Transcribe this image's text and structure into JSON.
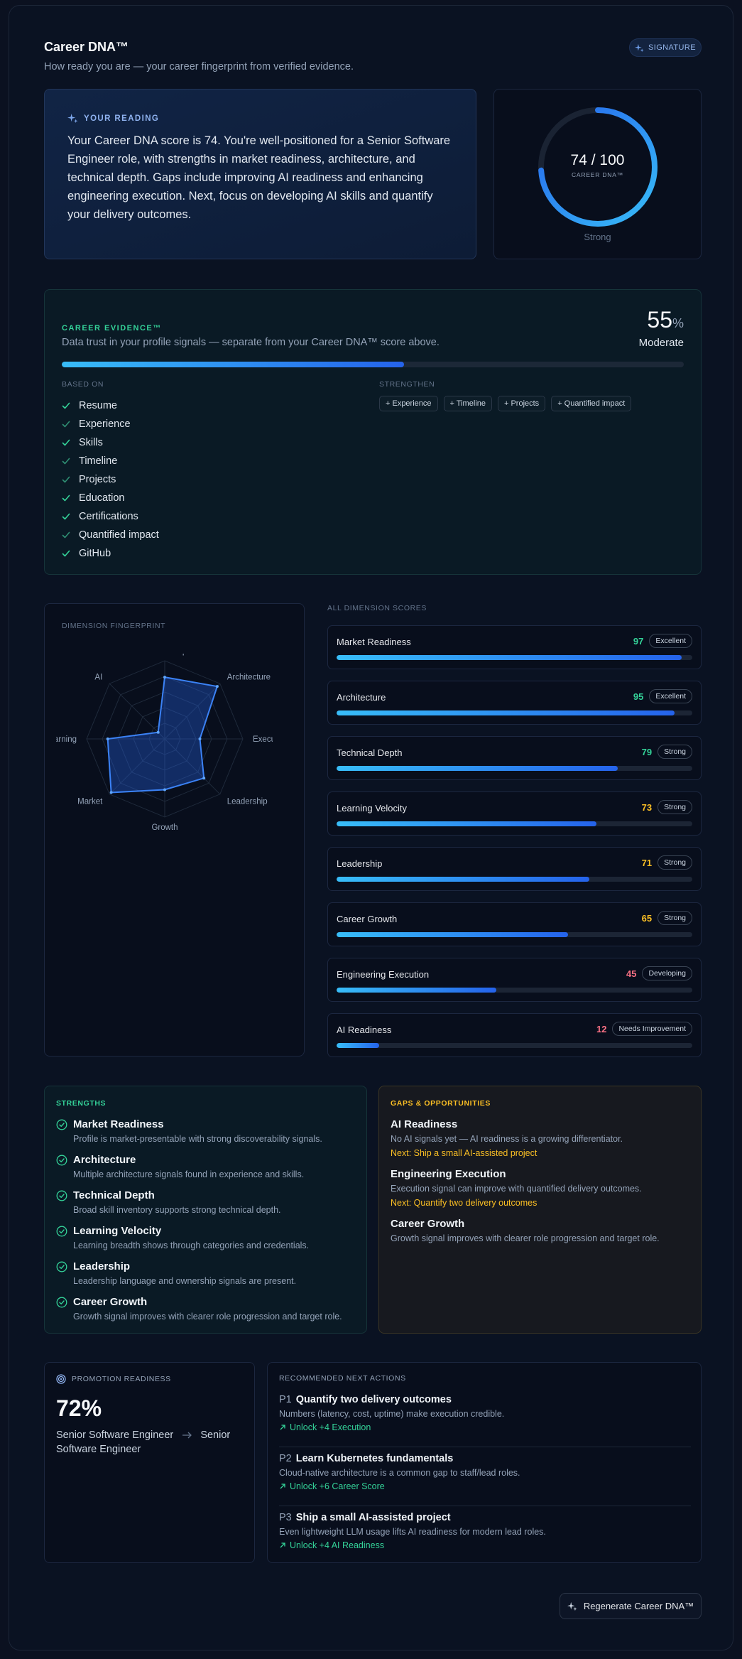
{
  "header": {
    "title": "Career DNA™",
    "subtitle": "How ready you are — your career fingerprint from verified evidence.",
    "badge": "SIGNATURE"
  },
  "reading": {
    "label": "YOUR READING",
    "text": "Your Career DNA score is 74. You're well-positioned for a Senior Software Engineer role, with strengths in market readiness, architecture, and technical depth. Gaps include improving AI readiness and enhancing engineering execution. Next, focus on developing AI skills and quantify your delivery outcomes."
  },
  "score": {
    "value": 74,
    "max": 100,
    "display": "74 / 100",
    "label": "CAREER DNA™",
    "level": "Strong"
  },
  "evidence": {
    "label": "CAREER EVIDENCE™",
    "description": "Data trust in your profile signals — separate from your Career DNA™ score above.",
    "percent": "55",
    "percent_unit": "%",
    "percent_value": 55,
    "level": "Moderate",
    "based_on_label": "BASED ON",
    "based_on": [
      {
        "label": "Resume",
        "strong": true
      },
      {
        "label": "Experience",
        "strong": false
      },
      {
        "label": "Skills",
        "strong": true
      },
      {
        "label": "Timeline",
        "strong": false
      },
      {
        "label": "Projects",
        "strong": false
      },
      {
        "label": "Education",
        "strong": true
      },
      {
        "label": "Certifications",
        "strong": true
      },
      {
        "label": "Quantified impact",
        "strong": false
      },
      {
        "label": "GitHub",
        "strong": true
      }
    ],
    "strengthen_label": "STRENGTHEN",
    "strengthen": [
      "+ Experience",
      "+ Timeline",
      "+ Projects",
      "+ Quantified impact"
    ]
  },
  "fingerprint": {
    "label": "DIMENSION FINGERPRINT",
    "axes": [
      {
        "label": "Technical Depth",
        "value": 79
      },
      {
        "label": "Architecture",
        "value": 95
      },
      {
        "label": "Execution",
        "value": 45
      },
      {
        "label": "Leadership",
        "value": 71
      },
      {
        "label": "Growth",
        "value": 65
      },
      {
        "label": "Market",
        "value": 97
      },
      {
        "label": "Learning",
        "value": 73
      },
      {
        "label": "AI",
        "value": 12
      }
    ]
  },
  "dimensions": {
    "label": "ALL DIMENSION SCORES",
    "items": [
      {
        "name": "Market Readiness",
        "score": "97",
        "value": 97,
        "badge": "Excellent",
        "color": "#34d399"
      },
      {
        "name": "Architecture",
        "score": "95",
        "value": 95,
        "badge": "Excellent",
        "color": "#34d399"
      },
      {
        "name": "Technical Depth",
        "score": "79",
        "value": 79,
        "badge": "Strong",
        "color": "#34d399"
      },
      {
        "name": "Learning Velocity",
        "score": "73",
        "value": 73,
        "badge": "Strong",
        "color": "#fbbf24"
      },
      {
        "name": "Leadership",
        "score": "71",
        "value": 71,
        "badge": "Strong",
        "color": "#fbbf24"
      },
      {
        "name": "Career Growth",
        "score": "65",
        "value": 65,
        "badge": "Strong",
        "color": "#fbbf24"
      },
      {
        "name": "Engineering Execution",
        "score": "45",
        "value": 45,
        "badge": "Developing",
        "color": "#fb7185"
      },
      {
        "name": "AI Readiness",
        "score": "12",
        "value": 12,
        "badge": "Needs Improvement",
        "color": "#fb7185"
      }
    ]
  },
  "strengths": {
    "label": "STRENGTHS",
    "items": [
      {
        "title": "Market Readiness",
        "desc": "Profile is market-presentable with strong discoverability signals."
      },
      {
        "title": "Architecture",
        "desc": "Multiple architecture signals found in experience and skills."
      },
      {
        "title": "Technical Depth",
        "desc": "Broad skill inventory supports strong technical depth."
      },
      {
        "title": "Learning Velocity",
        "desc": "Learning breadth shows through categories and credentials."
      },
      {
        "title": "Leadership",
        "desc": "Leadership language and ownership signals are present."
      },
      {
        "title": "Career Growth",
        "desc": "Growth signal improves with clearer role progression and target role."
      }
    ]
  },
  "gaps": {
    "label": "GAPS & OPPORTUNITIES",
    "items": [
      {
        "title": "AI Readiness",
        "desc": "No AI signals yet — AI readiness is a growing differentiator.",
        "next": "Next: Ship a small AI-assisted project"
      },
      {
        "title": "Engineering Execution",
        "desc": "Execution signal can improve with quantified delivery outcomes.",
        "next": "Next: Quantify two delivery outcomes"
      },
      {
        "title": "Career Growth",
        "desc": "Growth signal improves with clearer role progression and target role.",
        "next": ""
      }
    ]
  },
  "promotion": {
    "label": "PROMOTION READINESS",
    "percent": "72%",
    "from": "Senior Software Engineer",
    "to": "Senior Software Engineer"
  },
  "actions": {
    "label": "RECOMMENDED NEXT ACTIONS",
    "items": [
      {
        "priority": "P1",
        "title": "Quantify two delivery outcomes",
        "desc": "Numbers (latency, cost, uptime) make execution credible.",
        "unlock": "Unlock +4 Execution"
      },
      {
        "priority": "P2",
        "title": "Learn Kubernetes fundamentals",
        "desc": "Cloud-native architecture is a common gap to staff/lead roles.",
        "unlock": "Unlock +6 Career Score"
      },
      {
        "priority": "P3",
        "title": "Ship a small AI-assisted project",
        "desc": "Even lightweight LLM usage lifts AI readiness for modern lead roles.",
        "unlock": "Unlock +4 AI Readiness"
      }
    ]
  },
  "regenerate_label": "Regenerate Career DNA™",
  "colors": {
    "accent_blue": "#2563eb",
    "accent_cyan": "#38bdf8",
    "success": "#34d399",
    "warning": "#fbbf24",
    "danger": "#fb7185"
  },
  "icons": {
    "signature": "sparkle-icon",
    "reading": "sparkle-icon",
    "check": "check-icon",
    "strength": "check-circle-icon",
    "promotion": "target-icon",
    "unlock": "arrow-up-right-icon",
    "arrow": "arrow-right-icon",
    "regenerate": "sparkle-icon"
  }
}
